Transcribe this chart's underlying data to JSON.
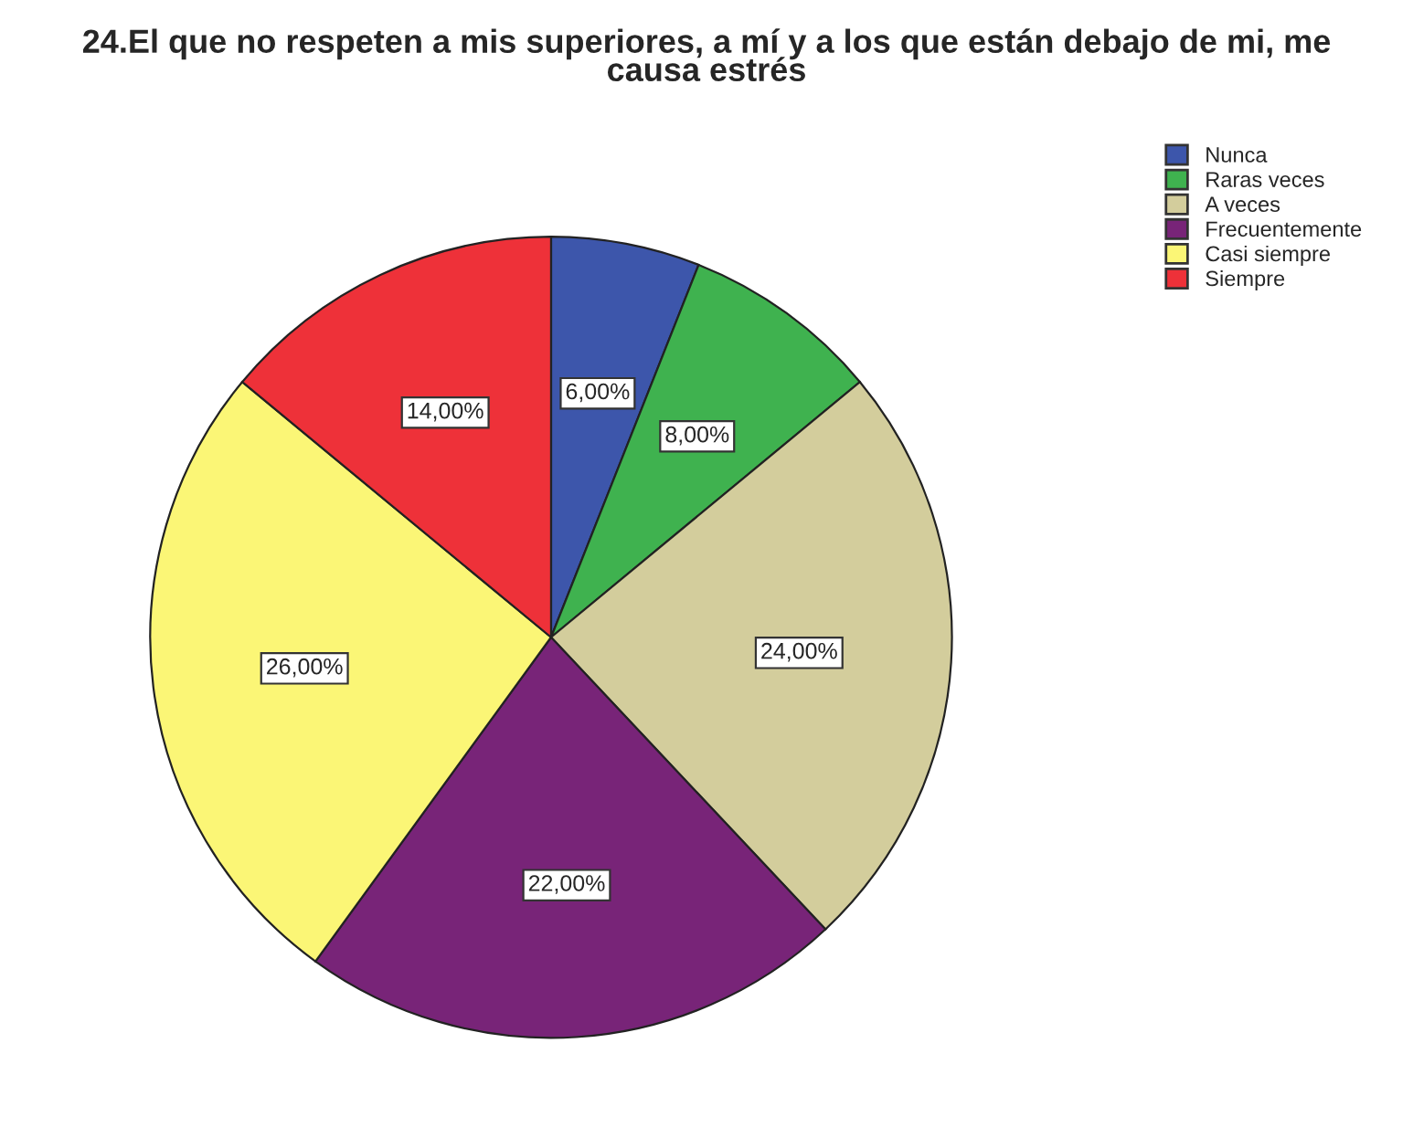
{
  "chart_data": {
    "type": "pie",
    "title": "24.El que no respeten a mis superiores, a mí y a los que están debajo de mi, me\ncausa estrés",
    "categories": [
      "Nunca",
      "Raras veces",
      "A veces",
      "Frecuentemente",
      "Casi siempre",
      "Siempre"
    ],
    "values": [
      6,
      8,
      24,
      22,
      26,
      14
    ],
    "value_labels": [
      "6,00%",
      "8,00%",
      "24,00%",
      "22,00%",
      "26,00%",
      "14,00%"
    ],
    "colors": [
      "#3d56ab",
      "#3fb24f",
      "#d3cd9c",
      "#782478",
      "#fbf676",
      "#ee3139"
    ],
    "legend": "top right"
  }
}
